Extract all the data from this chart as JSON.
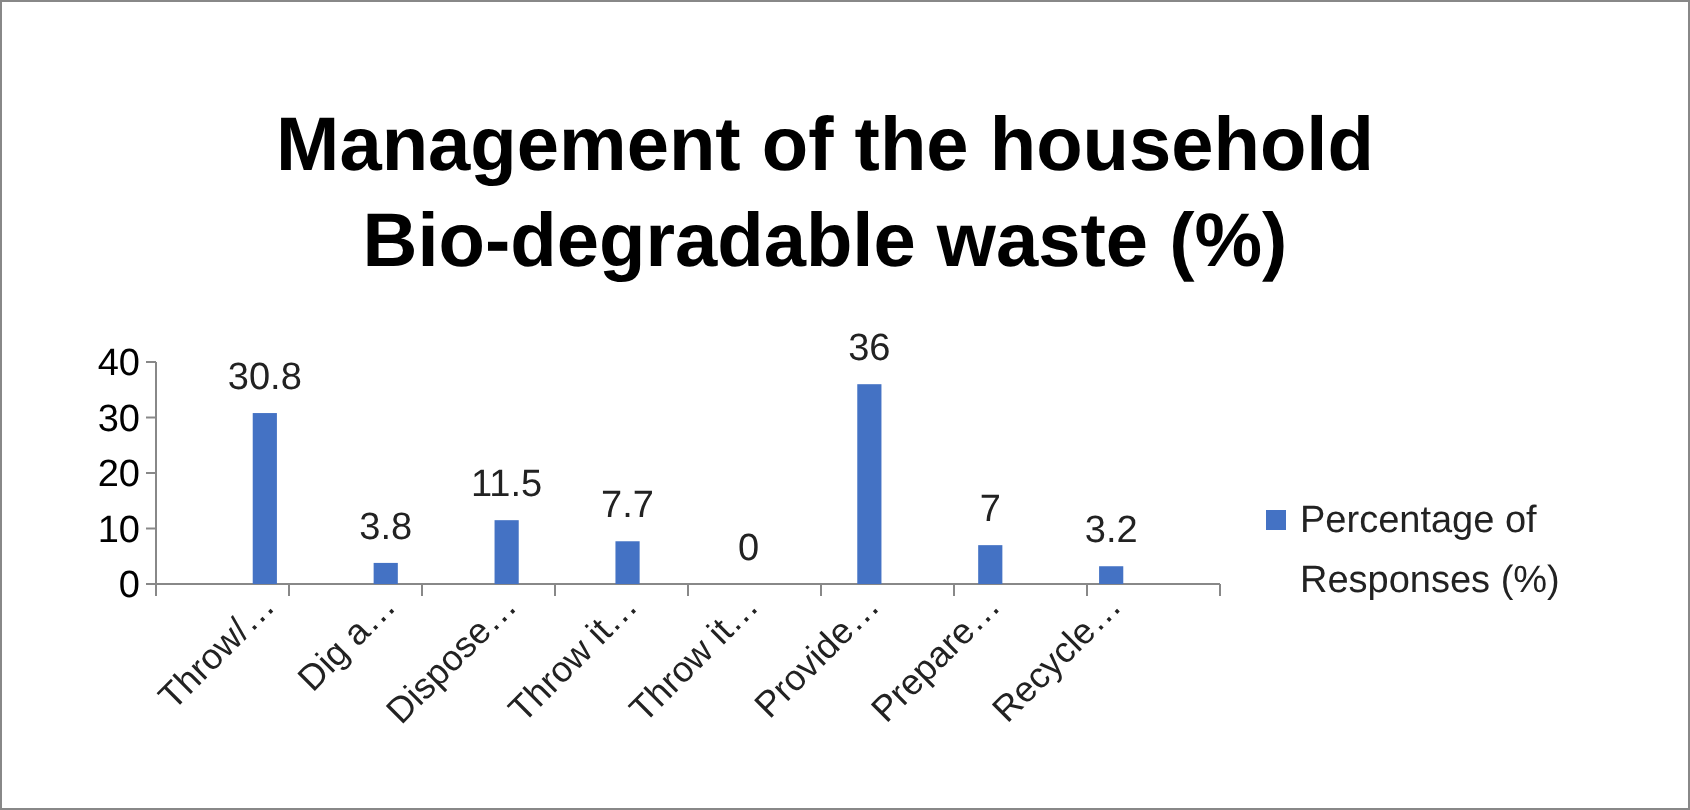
{
  "chart_data": {
    "type": "bar",
    "title": "Management of the household Bio-degradable waste (%)",
    "categories": [
      "Throw/…",
      "Dig a…",
      "Dispose…",
      "Throw it…",
      "Throw it…",
      "Provide…",
      "Prepare…",
      "Recycle…"
    ],
    "series": [
      {
        "name": "Percentage of Responses (%)",
        "color": "#4472c4",
        "values": [
          30.8,
          3.8,
          11.5,
          7.7,
          0,
          36,
          7,
          3.2
        ]
      }
    ],
    "ylim": [
      0,
      40
    ],
    "yticks": [
      0,
      10,
      20,
      30,
      40
    ],
    "grid": false,
    "legend": "right",
    "data_labels": true
  }
}
